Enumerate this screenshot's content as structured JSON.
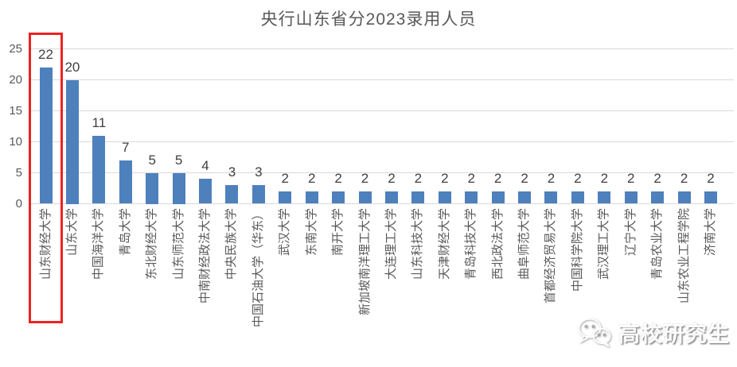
{
  "chart_data": {
    "type": "bar",
    "title": "央行山东省分2023录用人员",
    "categories": [
      "山东财经大学",
      "山东大学",
      "中国海洋大学",
      "青岛大学",
      "东北财经大学",
      "山东师范大学",
      "中南财经政法大学",
      "中央民族大学",
      "中国石油大学（华东）",
      "武汉大学",
      "东南大学",
      "南开大学",
      "新加坡南洋理工大学",
      "大连理工大学",
      "山东科技大学",
      "天津财经大学",
      "青岛科技大学",
      "西北政法大学",
      "曲阜师范大学",
      "首都经济贸易大学",
      "中国科学院大学",
      "武汉理工大学",
      "辽宁大学",
      "青岛农业大学",
      "山东农业工程学院",
      "济南大学"
    ],
    "values": [
      22,
      20,
      11,
      7,
      5,
      5,
      4,
      3,
      3,
      2,
      2,
      2,
      2,
      2,
      2,
      2,
      2,
      2,
      2,
      2,
      2,
      2,
      2,
      2,
      2,
      2
    ],
    "xlabel": "",
    "ylabel": "",
    "ylim": [
      0,
      25
    ],
    "yticks": [
      0,
      5,
      10,
      15,
      20,
      25
    ],
    "grid": true,
    "legend": "none",
    "bar_color": "#4E80BC",
    "title_color": "#595959",
    "axis_label_color": "#595959",
    "value_label_color": "#404040",
    "gridline_color": "#D9D9D9",
    "highlight": {
      "index": 0,
      "category": "山东财经大学",
      "box_color": "#EE2222"
    }
  },
  "watermark": {
    "label": "高校研究生",
    "icon": "wechat-icon"
  }
}
